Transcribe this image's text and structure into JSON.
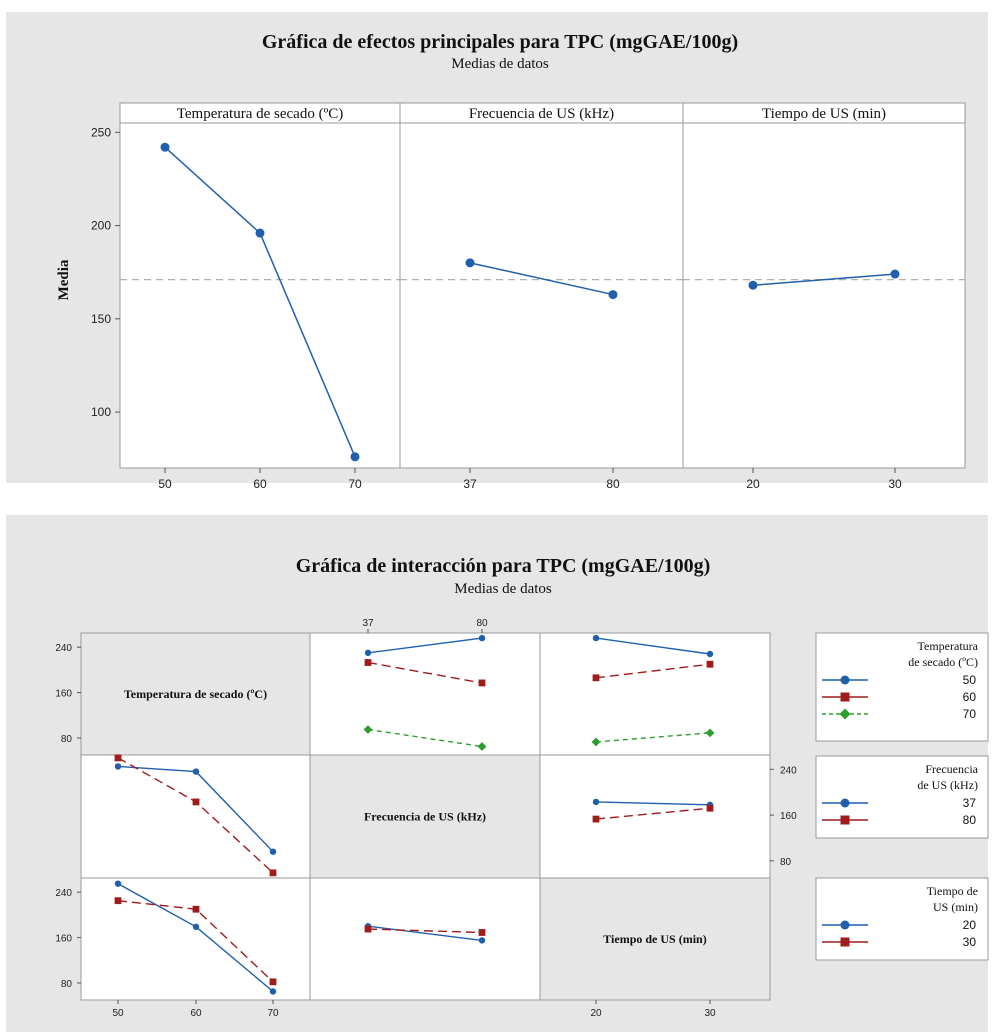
{
  "colors": {
    "blue": "#1f5fae",
    "red": "#a01c1c",
    "green": "#2e9e2e",
    "mean_line": "#b0b0b0",
    "panel_bg": "#e6e6e6"
  },
  "chart_data": [
    {
      "type": "line",
      "title": "Gráfica de efectos principales para TPC (mgGAE/100g)",
      "subtitle": "Medias de datos",
      "ylabel": "Media",
      "ylim": [
        70,
        255
      ],
      "yticks": [
        100,
        150,
        200,
        250
      ],
      "grand_mean": 171,
      "panels": [
        {
          "name": "Temperatura de secado (ºC)",
          "x": [
            "50",
            "60",
            "70"
          ],
          "y": [
            242,
            196,
            76
          ]
        },
        {
          "name": "Frecuencia de US (kHz)",
          "x": [
            "37",
            "80"
          ],
          "y": [
            180,
            163
          ]
        },
        {
          "name": "Tiempo de US (min)",
          "x": [
            "20",
            "30"
          ],
          "y": [
            168,
            174
          ]
        }
      ]
    },
    {
      "type": "line",
      "title": "Gráfica de interacción para TPC (mgGAE/100g)",
      "subtitle": "Medias de datos",
      "factors": [
        "Temperatura de secado (ºC)",
        "Frecuencia de US (kHz)",
        "Tiempo de US (min)"
      ],
      "levels": [
        [
          "50",
          "60",
          "70"
        ],
        [
          "37",
          "80"
        ],
        [
          "20",
          "30"
        ]
      ],
      "ylim": [
        50,
        265
      ],
      "yticks": [
        80,
        160,
        240
      ],
      "cells": [
        {
          "row": 0,
          "col": 1,
          "series": [
            {
              "name": "50",
              "values": [
                230,
                256
              ]
            },
            {
              "name": "60",
              "values": [
                213,
                177
              ]
            },
            {
              "name": "70",
              "values": [
                95,
                65
              ]
            }
          ]
        },
        {
          "row": 0,
          "col": 2,
          "series": [
            {
              "name": "50",
              "values": [
                256,
                228
              ]
            },
            {
              "name": "60",
              "values": [
                186,
                210
              ]
            },
            {
              "name": "70",
              "values": [
                73,
                89
              ]
            }
          ]
        },
        {
          "row": 1,
          "col": 0,
          "series": [
            {
              "name": "37",
              "values": [
                245,
                236,
                96
              ]
            },
            {
              "name": "80",
              "values": [
                260,
                183,
                59
              ]
            }
          ]
        },
        {
          "row": 1,
          "col": 2,
          "series": [
            {
              "name": "37",
              "values": [
                183,
                178
              ]
            },
            {
              "name": "80",
              "values": [
                153,
                172
              ]
            }
          ]
        },
        {
          "row": 2,
          "col": 0,
          "series": [
            {
              "name": "20",
              "values": [
                255,
                179,
                65
              ]
            },
            {
              "name": "30",
              "values": [
                225,
                210,
                82
              ]
            }
          ]
        },
        {
          "row": 2,
          "col": 1,
          "series": [
            {
              "name": "20",
              "values": [
                180,
                155
              ]
            },
            {
              "name": "30",
              "values": [
                175,
                169
              ]
            }
          ]
        }
      ],
      "legends": [
        {
          "title": [
            "Temperatura",
            "de secado (ºC)"
          ],
          "items": [
            "50",
            "60",
            "70"
          ]
        },
        {
          "title": [
            "Frecuencia",
            "de US (kHz)"
          ],
          "items": [
            "37",
            "80"
          ]
        },
        {
          "title": [
            "Tiempo de",
            "US (min)"
          ],
          "items": [
            "20",
            "30"
          ]
        }
      ]
    }
  ]
}
